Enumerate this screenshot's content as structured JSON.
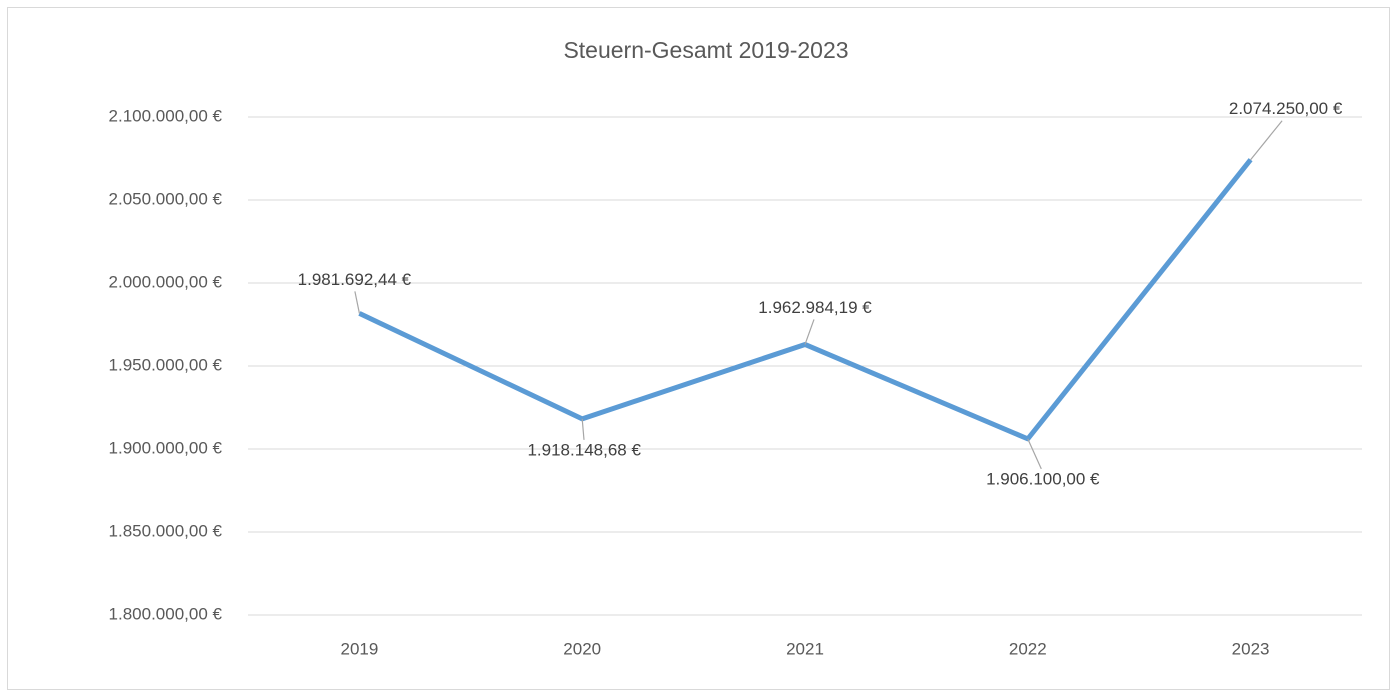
{
  "chart_data": {
    "type": "line",
    "title": "Steuern-Gesamt 2019-2023",
    "categories": [
      "2019",
      "2020",
      "2021",
      "2022",
      "2023"
    ],
    "series": [
      {
        "name": "Steuern-Gesamt",
        "color": "#5b9bd5",
        "values": [
          1981692.44,
          1918148.68,
          1962984.19,
          1906100.0,
          2074250.0
        ],
        "value_labels": [
          "1.981.692,44 €",
          "1.918.148,68 €",
          "1.962.984,19 €",
          "1.906.100,00 €",
          "2.074.250,00 €"
        ]
      }
    ],
    "ylim": [
      1800000,
      2100000
    ],
    "yticks": [
      {
        "value": 1800000,
        "label": "1.800.000,00 €"
      },
      {
        "value": 1850000,
        "label": "1.850.000,00 €"
      },
      {
        "value": 1900000,
        "label": "1.900.000,00 €"
      },
      {
        "value": 1950000,
        "label": "1.950.000,00 €"
      },
      {
        "value": 2000000,
        "label": "2.000.000,00 €"
      },
      {
        "value": 2050000,
        "label": "2.050.000,00 €"
      },
      {
        "value": 2100000,
        "label": "2.100.000,00 €"
      }
    ],
    "grid": true
  }
}
